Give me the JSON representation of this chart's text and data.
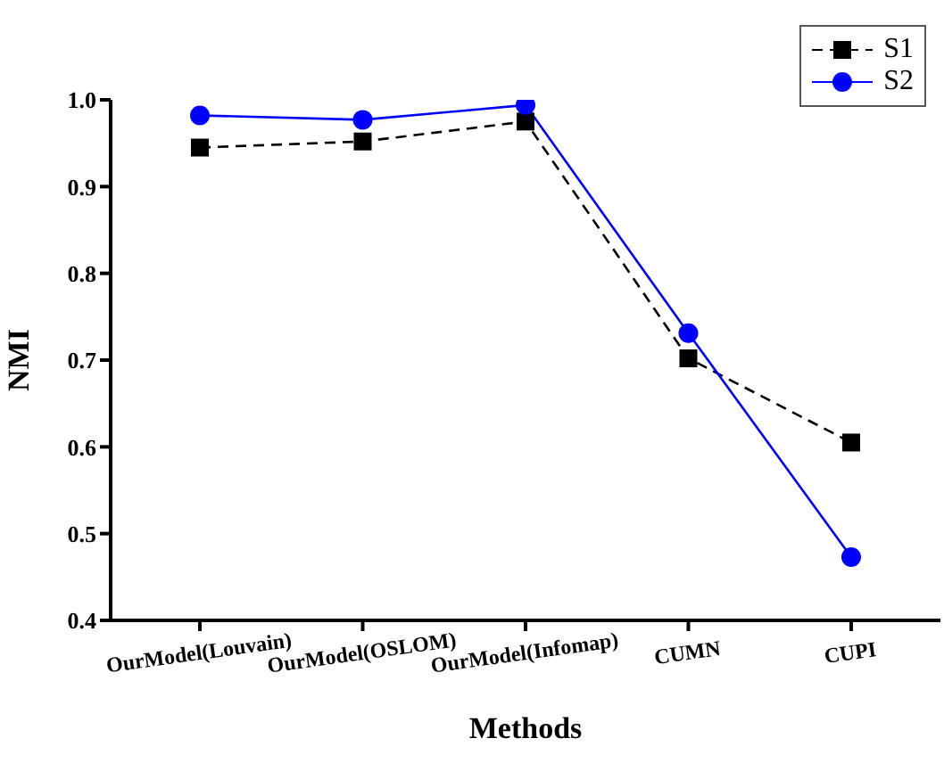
{
  "chart_data": {
    "type": "line",
    "xlabel": "Methods",
    "ylabel": "NMI",
    "categories": [
      "OurModel(Louvain)",
      "OurModel(OSLOM)",
      "OurModel(Infomap)",
      "CUMN",
      "CUPI"
    ],
    "series": [
      {
        "name": "S1",
        "color": "#000000",
        "marker": "square",
        "line_style": "dashed",
        "values": [
          0.945,
          0.952,
          0.975,
          0.702,
          0.605
        ]
      },
      {
        "name": "S2",
        "color": "#0000ff",
        "marker": "circle",
        "line_style": "solid",
        "values": [
          0.982,
          0.977,
          0.994,
          0.731,
          0.473
        ]
      }
    ],
    "ylim": [
      0.4,
      1.0
    ],
    "yticks": [
      {
        "value": 0.4,
        "label": "0.4"
      },
      {
        "value": 0.5,
        "label": "0.5"
      },
      {
        "value": 0.6,
        "label": "0.6"
      },
      {
        "value": 0.7,
        "label": "0.7"
      },
      {
        "value": 0.8,
        "label": "0.8"
      },
      {
        "value": 0.9,
        "label": "0.9"
      },
      {
        "value": 1.0,
        "label": "1.0"
      }
    ],
    "grid": false,
    "legend": "top right"
  }
}
